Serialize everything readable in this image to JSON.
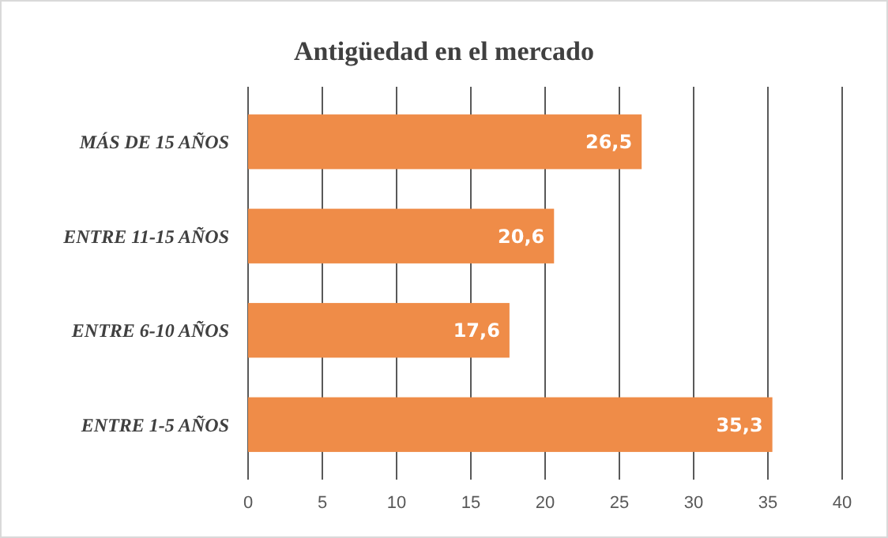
{
  "chart_data": {
    "type": "bar",
    "orientation": "horizontal",
    "title": "Antigüedad en el mercado",
    "categories": [
      "MÁS DE 15 AÑOS",
      "ENTRE 11-15 AÑOS",
      "ENTRE 6-10 AÑOS",
      "ENTRE 1-5 AÑOS"
    ],
    "values": [
      26.5,
      20.6,
      17.6,
      35.3
    ],
    "value_labels": [
      "26,5",
      "20,6",
      "17,6",
      "35,3"
    ],
    "color": "#ef8c48",
    "xlim": [
      0,
      40
    ],
    "xticks": [
      0,
      5,
      10,
      15,
      20,
      25,
      30,
      35,
      40
    ],
    "grid": "x"
  }
}
